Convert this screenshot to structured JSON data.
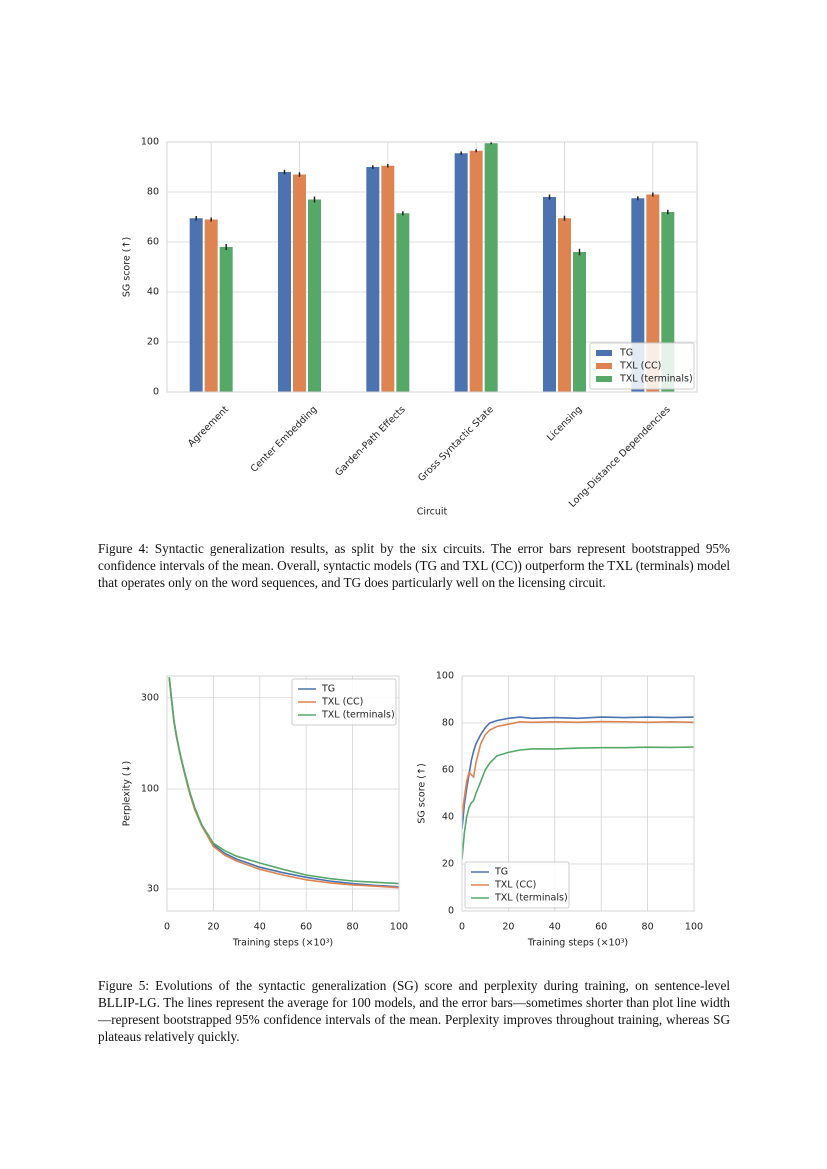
{
  "chart_data": [
    {
      "type": "bar",
      "categories": [
        "Agreement",
        "Center Embedding",
        "Garden-Path Effects",
        "Gross Syntactic State",
        "Licensing",
        "Long-Distance Dependencies"
      ],
      "series": [
        {
          "name": "TG",
          "color": "#4c72b0",
          "values": [
            69.5,
            88,
            90,
            95.5,
            78,
            77.5
          ],
          "errors": [
            0.9,
            0.9,
            0.7,
            0.7,
            1.0,
            0.8
          ]
        },
        {
          "name": "TXL (CC)",
          "color": "#dd8452",
          "values": [
            69,
            87,
            90.5,
            96.5,
            69.5,
            79
          ],
          "errors": [
            0.8,
            0.9,
            0.7,
            0.6,
            1.0,
            0.8
          ]
        },
        {
          "name": "TXL (terminals)",
          "color": "#55a868",
          "values": [
            58,
            77,
            71.5,
            99.5,
            56,
            72
          ],
          "errors": [
            1.2,
            1.2,
            0.8,
            0.4,
            1.3,
            0.9
          ]
        }
      ],
      "xlabel": "Circuit",
      "ylabel": "SG score (↑)",
      "ylim": [
        0,
        100
      ],
      "yticks": [
        0,
        20,
        40,
        60,
        80,
        100
      ],
      "grid": true,
      "legend": "lower right"
    },
    {
      "type": "line",
      "x": [
        1,
        2,
        3,
        4,
        5,
        6,
        8,
        10,
        12,
        15,
        20,
        25,
        30,
        40,
        50,
        60,
        70,
        80,
        90,
        100
      ],
      "series": [
        {
          "name": "TG",
          "color": "#4c72b0",
          "values": [
            380,
            290,
            225,
            190,
            165,
            145,
            115,
            93,
            78,
            64,
            51,
            46,
            43,
            39,
            36.5,
            34.5,
            33,
            32,
            31.3,
            30.8
          ]
        },
        {
          "name": "TXL (CC)",
          "color": "#dd8452",
          "values": [
            380,
            290,
            225,
            190,
            165,
            145,
            115,
            93,
            78,
            64,
            50,
            45,
            42,
            38,
            35.5,
            33.5,
            32.3,
            31.5,
            31,
            30.5
          ]
        },
        {
          "name": "TXL (terminals)",
          "color": "#55a868",
          "values": [
            385,
            295,
            228,
            193,
            167,
            147,
            117,
            95,
            80,
            65,
            52,
            47.5,
            44.5,
            41,
            38,
            35.5,
            34,
            33,
            32.5,
            32
          ]
        }
      ],
      "xlabel": "Training steps (×10³)",
      "ylabel": "Perplexity (↓)",
      "xlim": [
        0,
        100
      ],
      "xticks": [
        0,
        20,
        40,
        60,
        80,
        100
      ],
      "ylim": [
        23,
        390
      ],
      "yticks": [
        30,
        100,
        300
      ],
      "yscale": "log",
      "grid": true,
      "legend": "upper right"
    },
    {
      "type": "line",
      "x": [
        0,
        1,
        2,
        3,
        4,
        5,
        6,
        8,
        10,
        12,
        15,
        20,
        25,
        30,
        40,
        50,
        60,
        70,
        80,
        90,
        100
      ],
      "series": [
        {
          "name": "TG",
          "color": "#4c72b0",
          "values": [
            35,
            45,
            52,
            58,
            64,
            68,
            71,
            75,
            78,
            80,
            81,
            82,
            82.5,
            82,
            82.3,
            82,
            82.5,
            82.3,
            82.5,
            82.3,
            82.5
          ]
        },
        {
          "name": "TXL (CC)",
          "color": "#dd8452",
          "values": [
            40,
            48,
            55,
            59,
            58,
            57,
            63,
            71,
            75,
            77,
            78.5,
            79.5,
            80.5,
            80.3,
            80.5,
            80.3,
            80.6,
            80.5,
            80.3,
            80.5,
            80.3
          ]
        },
        {
          "name": "TXL (terminals)",
          "color": "#55a868",
          "values": [
            22,
            33,
            40,
            44,
            46,
            47,
            50,
            55,
            60,
            63,
            66,
            67.5,
            68.5,
            69,
            69,
            69.3,
            69.5,
            69.5,
            69.7,
            69.6,
            69.8
          ]
        }
      ],
      "xlabel": "Training steps (×10³)",
      "ylabel": "SG score (↑)",
      "xlim": [
        0,
        100
      ],
      "xticks": [
        0,
        20,
        40,
        60,
        80,
        100
      ],
      "ylim": [
        0,
        100
      ],
      "yticks": [
        0,
        20,
        40,
        60,
        80,
        100
      ],
      "grid": true,
      "legend": "lower left"
    }
  ],
  "captions": [
    "Figure 4: Syntactic generalization results, as split by the six circuits. The error bars represent bootstrapped 95% confidence intervals of the mean. Overall, syntactic models (TG and TXL (CC)) outperform the TXL (terminals) model that operates only on the word sequences, and TG does particularly well on the licensing circuit.",
    "Figure 5: Evolutions of the syntactic generalization (SG) score and perplexity during training, on sentence-level BLLIP-LG. The lines represent the average for 100 models, and the error bars—sometimes shorter than plot line width—represent bootstrapped 95% confidence intervals of the mean. Perplexity improves throughout training, whereas SG plateaus relatively quickly."
  ]
}
